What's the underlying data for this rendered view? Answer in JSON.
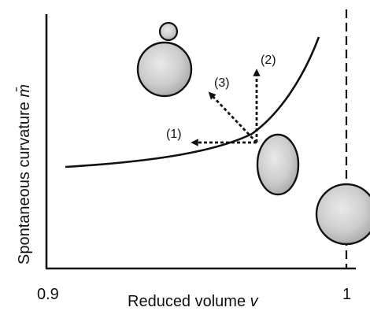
{
  "figure": {
    "axes": {
      "x": {
        "label": "Reduced volume ",
        "symbol": "v",
        "ticks": [
          "0.9",
          "1"
        ]
      },
      "y": {
        "label": "Spontaneous curvature ",
        "symbol": "m̄"
      }
    },
    "paths": [
      {
        "label": "(1)"
      },
      {
        "label": "(2)"
      },
      {
        "label": "(3)"
      }
    ],
    "shapes": [
      "budded-vesicle",
      "prolate-vesicle",
      "spherical-vesicle"
    ]
  }
}
